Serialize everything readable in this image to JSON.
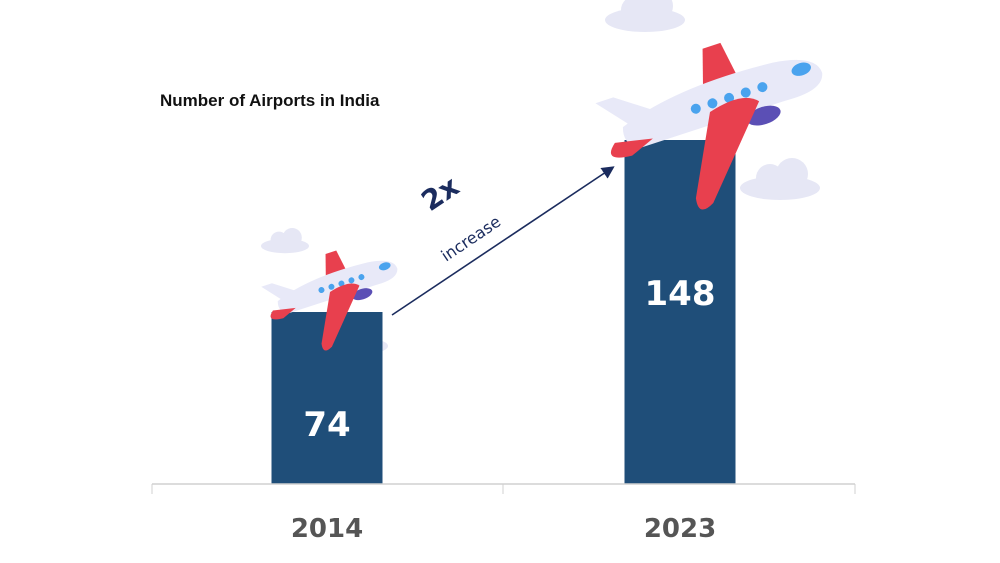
{
  "chart_data": {
    "type": "bar",
    "title": "Number of Airports in India",
    "categories": [
      "2014",
      "2023"
    ],
    "values": [
      74,
      148
    ],
    "xlabel": "",
    "ylabel": "",
    "ylim": [
      0,
      148
    ],
    "grid": false,
    "annotation": {
      "multiplier": "2x",
      "text": "increase"
    },
    "colors": {
      "bar": "#1f4e79",
      "plane_body": "#e8e9f8",
      "plane_wing": "#e8404e",
      "window": "#4aa3ee",
      "cloud": "#e6e7f5"
    }
  }
}
